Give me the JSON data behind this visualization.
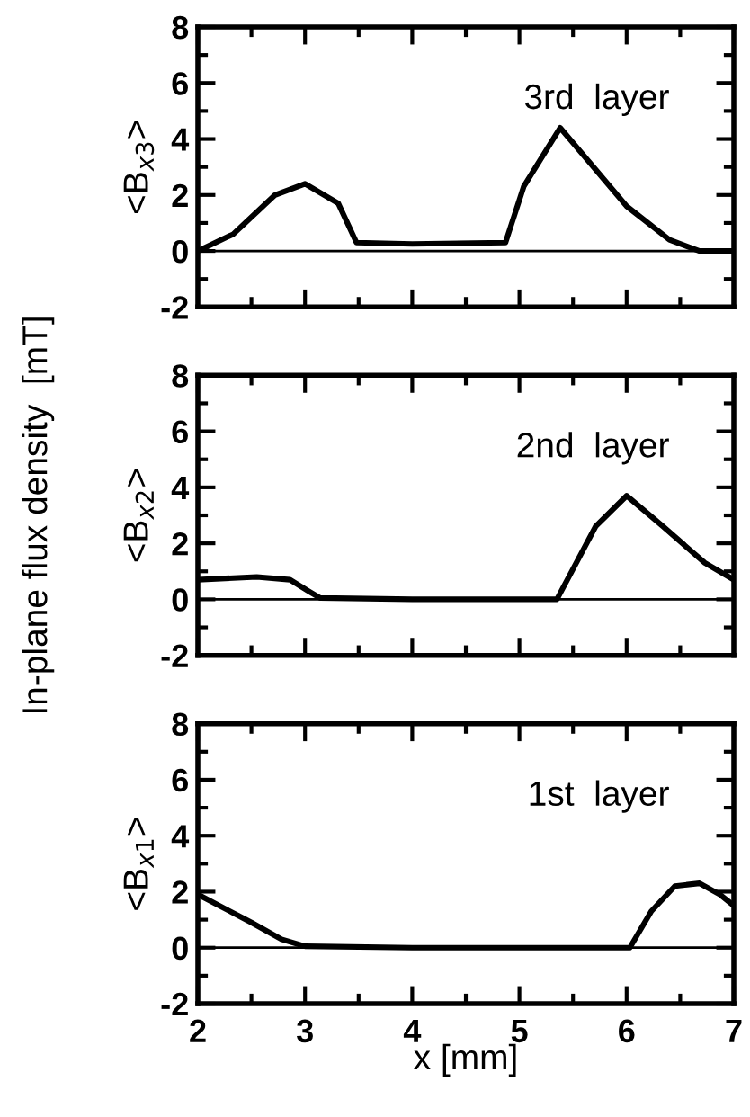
{
  "chart_data": [
    {
      "type": "line",
      "ylabel": "<B$_{x3}$>",
      "annotations": [
        "3rd  layer"
      ],
      "tick_labels": "y",
      "grid": false,
      "legend": false,
      "marker": "none",
      "line_style": "solid",
      "x": [
        2,
        2.33,
        2.72,
        3.0,
        3.31,
        3.48,
        4.0,
        4.87,
        5.04,
        5.38,
        6.0,
        6.4,
        6.68,
        7
      ],
      "series": [
        {
          "color": "#000000",
          "values": [
            0,
            0.6,
            2.0,
            2.4,
            1.7,
            0.3,
            0.25,
            0.3,
            2.3,
            4.4,
            1.6,
            0.4,
            0,
            0
          ]
        }
      ],
      "xlim": [
        2,
        7
      ],
      "ylim": [
        -2,
        8
      ],
      "xticks": [
        2,
        {
          "value": 2.5,
          "label": null
        },
        3,
        {
          "value": 3.5,
          "label": null
        },
        4,
        {
          "value": 4.5,
          "label": null
        },
        5,
        {
          "value": 5.5,
          "label": null
        },
        6,
        {
          "value": 6.5,
          "label": null
        },
        7
      ],
      "yticks": [
        -2,
        {
          "value": -1,
          "label": null
        },
        0,
        {
          "value": 1,
          "label": null
        },
        2,
        {
          "value": 3,
          "label": null
        },
        4,
        {
          "value": 5,
          "label": null
        },
        6,
        {
          "value": 7,
          "label": null
        },
        8
      ],
      "ref_lines": [
        {
          "axis": "y",
          "value": 0,
          "label": null,
          "color": "#000000"
        }
      ]
    },
    {
      "type": "line",
      "ylabel": "<B$_{x2}$>",
      "annotations": [
        "2nd  layer",
        "In-plane flux density  [mT]"
      ],
      "tick_labels": "y",
      "grid": false,
      "legend": false,
      "marker": "none",
      "line_style": "solid",
      "x": [
        2,
        2.55,
        2.86,
        3.03,
        3.14,
        4.0,
        5.35,
        5.71,
        6.0,
        6.34,
        6.73,
        7
      ],
      "series": [
        {
          "color": "#000000",
          "values": [
            0.7,
            0.8,
            0.7,
            0.3,
            0.05,
            0,
            0,
            2.6,
            3.7,
            2.6,
            1.3,
            0.7
          ]
        }
      ],
      "xlim": [
        2,
        7
      ],
      "ylim": [
        -2,
        8
      ],
      "xticks": [
        2,
        {
          "value": 2.5,
          "label": null
        },
        3,
        {
          "value": 3.5,
          "label": null
        },
        4,
        {
          "value": 4.5,
          "label": null
        },
        5,
        {
          "value": 5.5,
          "label": null
        },
        6,
        {
          "value": 6.5,
          "label": null
        },
        7
      ],
      "yticks": [
        -2,
        {
          "value": -1,
          "label": null
        },
        0,
        {
          "value": 1,
          "label": null
        },
        2,
        {
          "value": 3,
          "label": null
        },
        4,
        {
          "value": 5,
          "label": null
        },
        6,
        {
          "value": 7,
          "label": null
        },
        8
      ],
      "ref_lines": [
        {
          "axis": "y",
          "value": 0,
          "label": null,
          "color": "#000000"
        }
      ]
    },
    {
      "type": "line",
      "ylabel": "<B$_{x1}$>",
      "xlabel": "x [mm]",
      "annotations": [
        "1st  layer"
      ],
      "grid": false,
      "legend": false,
      "marker": "none",
      "line_style": "solid",
      "x": [
        2,
        2.5,
        2.78,
        3.0,
        4.0,
        5.0,
        6.03,
        6.23,
        6.45,
        6.68,
        6.87,
        7
      ],
      "series": [
        {
          "color": "#000000",
          "values": [
            1.9,
            0.9,
            0.3,
            0.05,
            0,
            0,
            0,
            1.3,
            2.2,
            2.3,
            1.9,
            1.5
          ]
        }
      ],
      "xlim": [
        2,
        7
      ],
      "ylim": [
        -2,
        8
      ],
      "xticks": [
        2,
        {
          "value": 2.5,
          "label": null
        },
        3,
        {
          "value": 3.5,
          "label": null
        },
        4,
        {
          "value": 4.5,
          "label": null
        },
        5,
        {
          "value": 5.5,
          "label": null
        },
        6,
        {
          "value": 6.5,
          "label": null
        },
        7
      ],
      "yticks": [
        -2,
        {
          "value": -1,
          "label": null
        },
        0,
        {
          "value": 1,
          "label": null
        },
        2,
        {
          "value": 3,
          "label": null
        },
        4,
        {
          "value": 5,
          "label": null
        },
        6,
        {
          "value": 7,
          "label": null
        },
        8
      ],
      "ref_lines": [
        {
          "axis": "y",
          "value": 0,
          "label": null,
          "color": "#000000"
        }
      ]
    }
  ]
}
